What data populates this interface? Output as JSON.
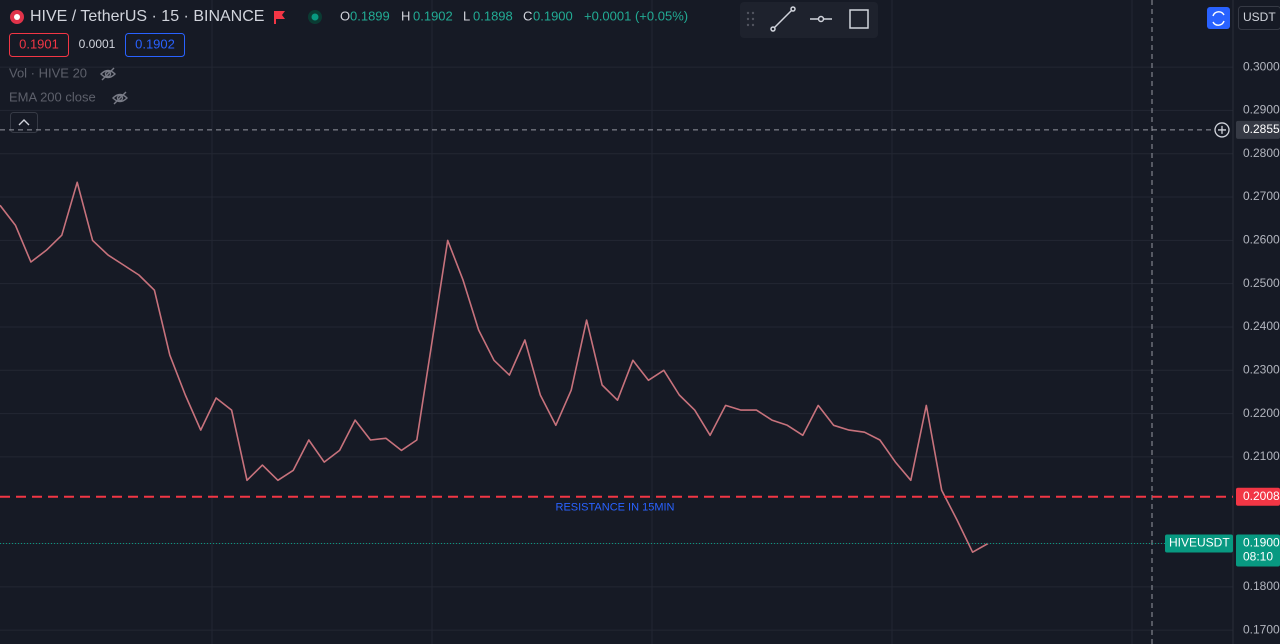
{
  "chart_data": {
    "type": "line",
    "title": "HIVE / TetherUS · 15 · BINANCE",
    "ohlc": [
      {
        "key": "O",
        "value": "0.1899"
      },
      {
        "key": "H",
        "value": "0.1902"
      },
      {
        "key": "L",
        "value": "0.1898"
      },
      {
        "key": "C",
        "value": "0.1900"
      }
    ],
    "change": "+0.0001 (+0.05%)",
    "quote": {
      "bid": "0.1901",
      "spread": "0.0001",
      "ask": "0.1902"
    },
    "indicators": [
      "Vol · HIVE 20",
      "EMA 200 close"
    ],
    "currency": "USDT",
    "color": "#c7727c",
    "values": [
      0.2681,
      0.2635,
      0.255,
      0.2577,
      0.2612,
      0.2734,
      0.26,
      0.2566,
      0.2543,
      0.252,
      0.2485,
      0.2335,
      0.2243,
      0.2162,
      0.2236,
      0.2208,
      0.2046,
      0.2081,
      0.2046,
      0.2069,
      0.2139,
      0.2088,
      0.2115,
      0.2185,
      0.2139,
      0.2143,
      0.2115,
      0.2139,
      0.237,
      0.26,
      0.2508,
      0.2393,
      0.2323,
      0.2289,
      0.237,
      0.2243,
      0.2173,
      0.2254,
      0.2416,
      0.2266,
      0.2231,
      0.2323,
      0.2277,
      0.23,
      0.2243,
      0.2208,
      0.215,
      0.2219,
      0.2208,
      0.2208,
      0.2185,
      0.2173,
      0.215,
      0.2219,
      0.2173,
      0.2162,
      0.2157,
      0.2139,
      0.2088,
      0.2046,
      0.2219,
      0.2023,
      0.1954,
      0.188,
      0.19
    ],
    "ylim": [
      0.1668,
      0.3155
    ],
    "yticks": [
      {
        "value": 0.17,
        "label": "0.1700"
      },
      {
        "value": 0.18,
        "label": "0.1800"
      },
      {
        "value": 0.19,
        "label": "0.1900"
      },
      {
        "value": 0.21,
        "label": "0.2100"
      },
      {
        "value": 0.22,
        "label": "0.2200"
      },
      {
        "value": 0.23,
        "label": "0.2300"
      },
      {
        "value": 0.24,
        "label": "0.2400"
      },
      {
        "value": 0.25,
        "label": "0.2500"
      },
      {
        "value": 0.26,
        "label": "0.2600"
      },
      {
        "value": 0.27,
        "label": "0.2700"
      },
      {
        "value": 0.28,
        "label": "0.2800"
      },
      {
        "value": 0.29,
        "label": "0.2900"
      },
      {
        "value": 0.3,
        "label": "0.3000"
      }
    ],
    "grid": true,
    "resistance": {
      "text": "RESISTANCE IN 15MIN",
      "value": 0.2008,
      "label": "0.2008",
      "color": "#f23645"
    },
    "last_price": {
      "symbol": "HIVEUSDT",
      "value": 0.19,
      "label": "0.1900",
      "countdown": "08:10",
      "color": "#089981"
    },
    "crosshair": {
      "value": 0.2855,
      "label": "0.2855"
    }
  }
}
